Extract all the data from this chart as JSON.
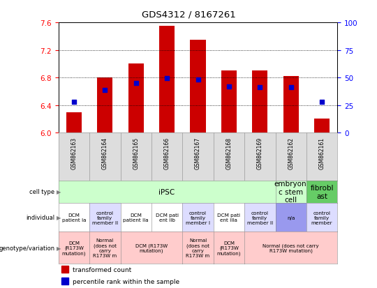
{
  "title": "GDS4312 / 8167261",
  "samples": [
    "GSM862163",
    "GSM862164",
    "GSM862165",
    "GSM862166",
    "GSM862167",
    "GSM862168",
    "GSM862169",
    "GSM862162",
    "GSM862161"
  ],
  "bar_values": [
    6.3,
    6.8,
    7.0,
    7.55,
    7.35,
    6.9,
    6.9,
    6.82,
    6.2
  ],
  "dot_values": [
    6.45,
    6.62,
    6.72,
    6.79,
    6.77,
    6.67,
    6.66,
    6.66,
    6.45
  ],
  "ylim_left": [
    6.0,
    7.6
  ],
  "ylim_right": [
    0,
    100
  ],
  "yticks_left": [
    6.0,
    6.4,
    6.8,
    7.2,
    7.6
  ],
  "yticks_right": [
    0,
    25,
    50,
    75,
    100
  ],
  "bar_color": "#cc0000",
  "dot_color": "#0000cc",
  "bar_base": 6.0,
  "cell_types": [
    {
      "label": "iPSC",
      "span": [
        0,
        7
      ],
      "color": "#ccffcc"
    },
    {
      "label": "embryoni\nc stem\ncell",
      "span": [
        7,
        8
      ],
      "color": "#ccffcc"
    },
    {
      "label": "fibrobl\nast",
      "span": [
        8,
        9
      ],
      "color": "#66cc66"
    }
  ],
  "individuals": [
    {
      "label": "DCM\npatient Ia",
      "span": [
        0,
        1
      ],
      "color": "#ffffff"
    },
    {
      "label": "control\nfamily\nmember II",
      "span": [
        1,
        2
      ],
      "color": "#ddddff"
    },
    {
      "label": "DCM\npatient IIa",
      "span": [
        2,
        3
      ],
      "color": "#ffffff"
    },
    {
      "label": "DCM pati\nent IIb",
      "span": [
        3,
        4
      ],
      "color": "#ffffff"
    },
    {
      "label": "control\nfamily\nmember I",
      "span": [
        4,
        5
      ],
      "color": "#ddddff"
    },
    {
      "label": "DCM pati\nent IIIa",
      "span": [
        5,
        6
      ],
      "color": "#ffffff"
    },
    {
      "label": "control\nfamily\nmember II",
      "span": [
        6,
        7
      ],
      "color": "#ddddff"
    },
    {
      "label": "n/a",
      "span": [
        7,
        8
      ],
      "color": "#9999ee"
    },
    {
      "label": "control\nfamily\nmember",
      "span": [
        8,
        9
      ],
      "color": "#ddddff"
    }
  ],
  "genotypes": [
    {
      "label": "DCM\n(R173W\nmutation)",
      "span": [
        0,
        1
      ],
      "color": "#ffcccc"
    },
    {
      "label": "Normal\n(does not\ncarry\nR173W m",
      "span": [
        1,
        2
      ],
      "color": "#ffcccc"
    },
    {
      "label": "DCM (R173W\nmutation)",
      "span": [
        2,
        4
      ],
      "color": "#ffcccc"
    },
    {
      "label": "Normal\n(does not\ncarry\nR173W m",
      "span": [
        4,
        5
      ],
      "color": "#ffcccc"
    },
    {
      "label": "DCM\n(R173W\nmutation)",
      "span": [
        5,
        6
      ],
      "color": "#ffcccc"
    },
    {
      "label": "Normal (does not carry\nR173W mutation)",
      "span": [
        6,
        9
      ],
      "color": "#ffcccc"
    }
  ],
  "row_labels": [
    "cell type",
    "individual",
    "genotype/variation"
  ],
  "legend_items": [
    {
      "color": "#cc0000",
      "label": "transformed count"
    },
    {
      "color": "#0000cc",
      "label": "percentile rank within the sample"
    }
  ]
}
